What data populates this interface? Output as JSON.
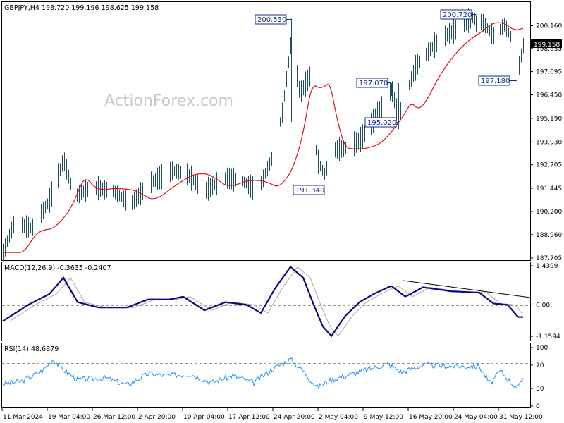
{
  "chart_data": [
    {
      "type": "candlestick",
      "panel": "price",
      "header": "GBPJPY,H4  198.720 199.196 198.625 199.158",
      "watermark": "ActionForex.com",
      "ylim": [
        187.705,
        201.385
      ],
      "yticks": [
        "200.160",
        "198.935",
        "197.695",
        "196.450",
        "195.190",
        "193.930",
        "192.705",
        "191.445",
        "190.200",
        "188.960",
        "187.705"
      ],
      "current_price_label": "199.158",
      "current_price": 199.158,
      "annotations": [
        {
          "text": "200.530",
          "value": 200.53
        },
        {
          "text": "200.720",
          "value": 200.72
        },
        {
          "text": "197.070",
          "value": 197.07
        },
        {
          "text": "195.020",
          "value": 195.02
        },
        {
          "text": "191.340",
          "value": 191.34
        },
        {
          "text": "197.180",
          "value": 197.18
        }
      ],
      "series": [
        {
          "name": "",
          "kind": "moving-average",
          "color": "#e0101a"
        }
      ],
      "bar_color": "#1f4f5a"
    },
    {
      "type": "line",
      "panel": "macd",
      "header": "MACD(12,26,9) -0.3635 -0.2407",
      "ylim": [
        -1.1594,
        1.4399
      ],
      "yticks": [
        "1.4399",
        "0.00",
        "-1.1594"
      ],
      "series": [
        {
          "name": "",
          "kind": "macd",
          "color": "#0a0a80"
        },
        {
          "name": "",
          "kind": "signal",
          "color": "#aaaaaa"
        }
      ],
      "trendline": true,
      "zero_line": true
    },
    {
      "type": "line",
      "panel": "rsi",
      "header": "RSI(14) 48.6879",
      "ylim": [
        0,
        100
      ],
      "yticks": [
        "100",
        "70",
        "30",
        "0"
      ],
      "levels": [
        70,
        30
      ],
      "series": [
        {
          "name": "",
          "kind": "rsi",
          "color": "#1e90ff"
        }
      ]
    }
  ],
  "x_axis": {
    "labels": [
      "11 Mar 2024",
      "19 Mar 04:00",
      "26 Mar 12:00",
      "2 Apr 20:00",
      "10 Apr 04:00",
      "17 Apr 12:00",
      "24 Apr 20:00",
      "2 May 04:00",
      "9 May 12:00",
      "16 May 20:00",
      "24 May 04:00",
      "31 May 12:00"
    ]
  }
}
